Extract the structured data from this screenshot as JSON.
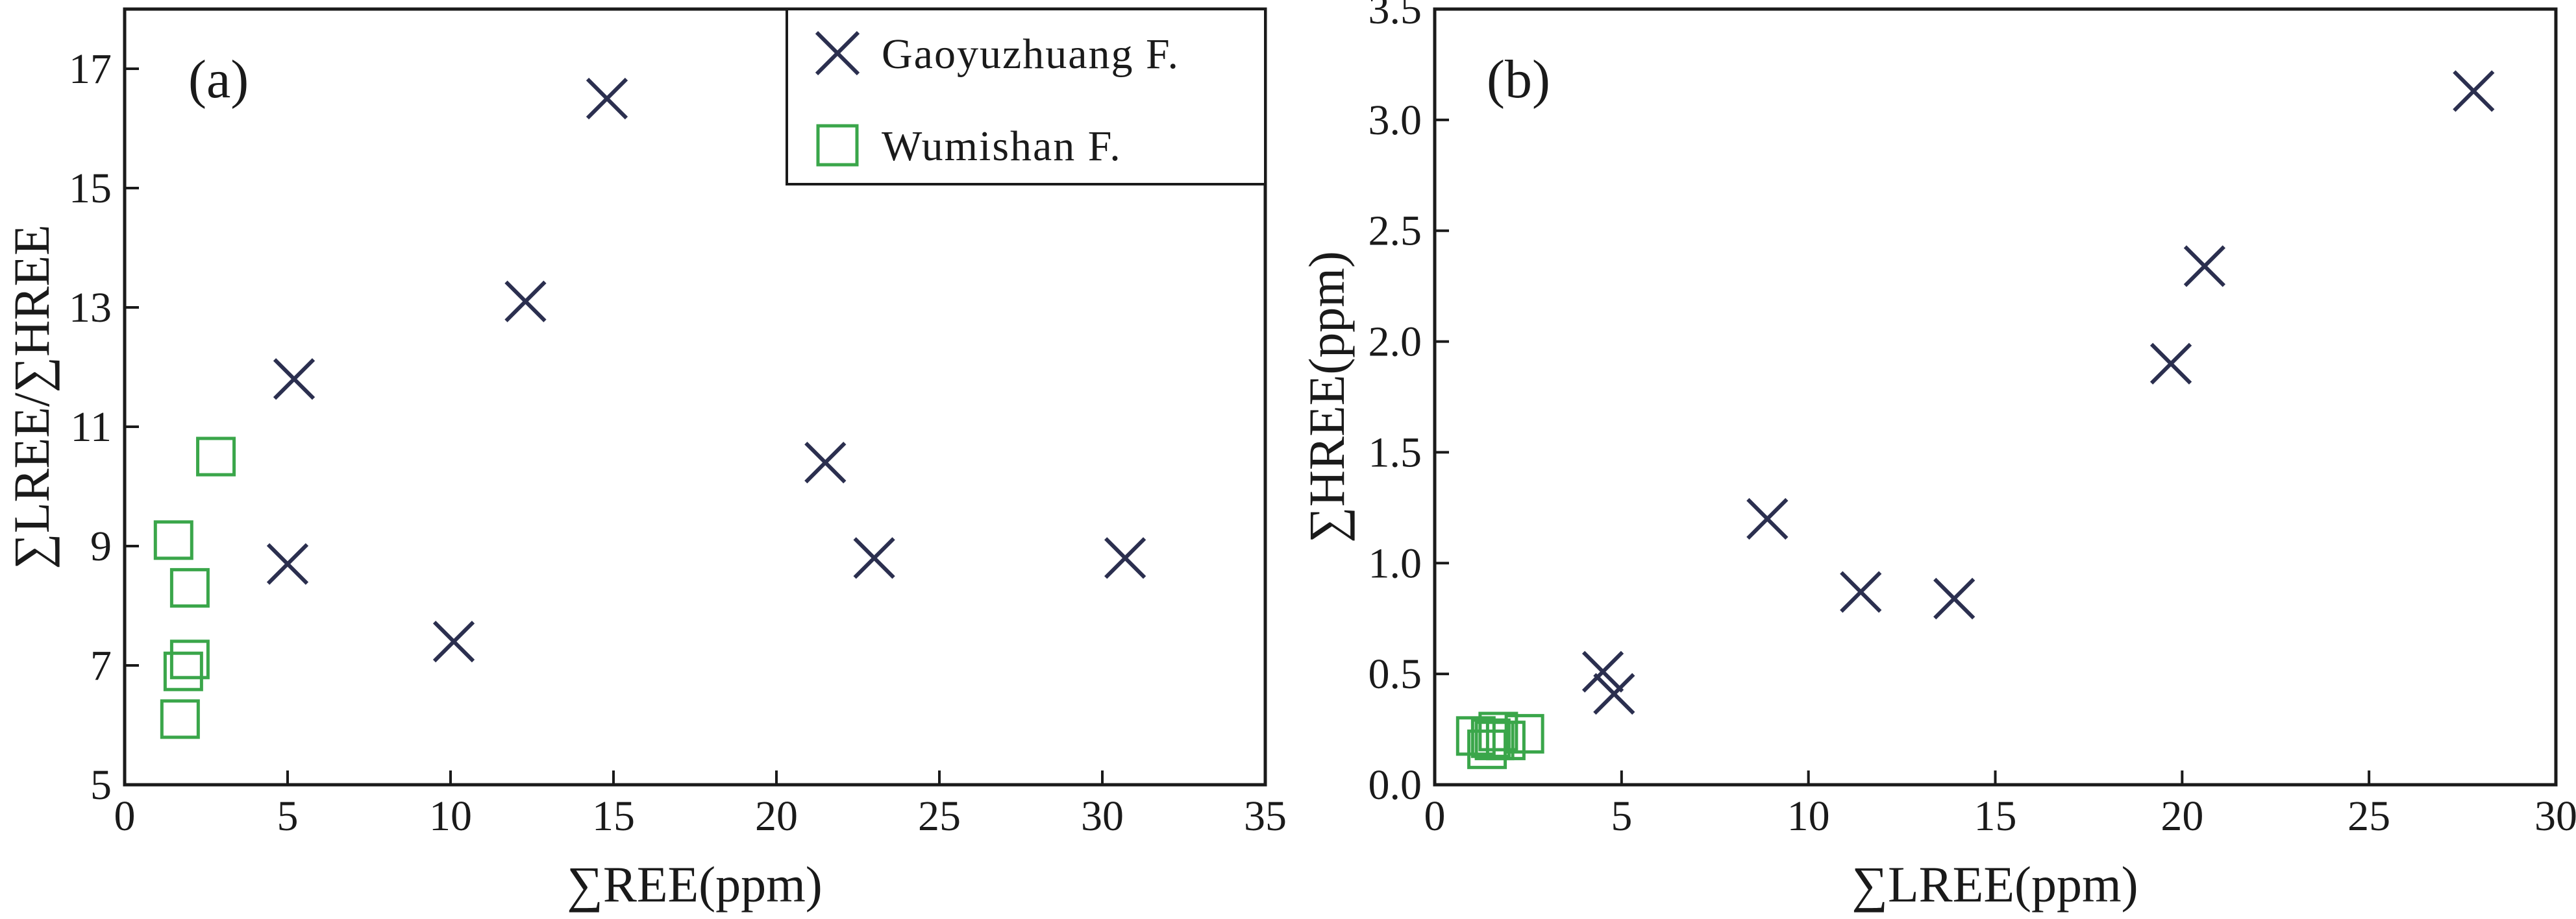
{
  "colors": {
    "gaoyuzhuang": "#2b2f4f",
    "wumishan": "#3aa64a",
    "axis": "#1a1a1a"
  },
  "legend": {
    "gaoyuzhuang": "Gaoyuzhuang F.",
    "wumishan": "Wumishan F."
  },
  "chart_data": [
    {
      "type": "scatter",
      "panel_label": "(a)",
      "xlabel": "∑REE(ppm)",
      "ylabel": "∑LREE/∑HREE",
      "xlim": [
        0,
        35
      ],
      "ylim": [
        5,
        18
      ],
      "xticks": [
        0,
        5,
        10,
        15,
        20,
        25,
        30,
        35
      ],
      "yticks": [
        5,
        7,
        9,
        11,
        13,
        15,
        17
      ],
      "grid": false,
      "legend_position": "top-right",
      "series": [
        {
          "name": "Gaoyuzhuang F.",
          "marker": "x",
          "points": [
            [
              5.2,
              11.8
            ],
            [
              5.0,
              8.7
            ],
            [
              10.1,
              7.4
            ],
            [
              12.3,
              13.1
            ],
            [
              14.8,
              16.5
            ],
            [
              21.5,
              10.4
            ],
            [
              23.0,
              8.8
            ],
            [
              30.7,
              8.8
            ]
          ]
        },
        {
          "name": "Wumishan F.",
          "marker": "square",
          "points": [
            [
              2.8,
              10.5
            ],
            [
              1.5,
              9.1
            ],
            [
              2.0,
              8.3
            ],
            [
              2.0,
              7.1
            ],
            [
              1.8,
              6.9
            ],
            [
              1.7,
              6.1
            ]
          ]
        }
      ]
    },
    {
      "type": "scatter",
      "panel_label": "(b)",
      "xlabel": "∑LREE(ppm)",
      "ylabel": "∑HREE(ppm)",
      "xlim": [
        0,
        30
      ],
      "ylim": [
        0,
        3.5
      ],
      "xticks": [
        0,
        5,
        10,
        15,
        20,
        25,
        30
      ],
      "yticks": [
        "0.0",
        "0.5",
        "1.0",
        "1.5",
        "2.0",
        "2.5",
        "3.0",
        "3.5"
      ],
      "grid": false,
      "series": [
        {
          "name": "Gaoyuzhuang F.",
          "marker": "x",
          "points": [
            [
              27.8,
              3.13
            ],
            [
              20.6,
              2.34
            ],
            [
              19.7,
              1.9
            ],
            [
              8.9,
              1.2
            ],
            [
              11.4,
              0.87
            ],
            [
              13.9,
              0.84
            ],
            [
              4.5,
              0.51
            ],
            [
              4.8,
              0.41
            ]
          ]
        },
        {
          "name": "Wumishan F.",
          "marker": "square",
          "points": [
            [
              1.1,
              0.22
            ],
            [
              1.5,
              0.21
            ],
            [
              1.7,
              0.24
            ],
            [
              1.4,
              0.16
            ],
            [
              1.9,
              0.2
            ],
            [
              2.4,
              0.23
            ],
            [
              1.6,
              0.2
            ]
          ]
        }
      ]
    }
  ]
}
